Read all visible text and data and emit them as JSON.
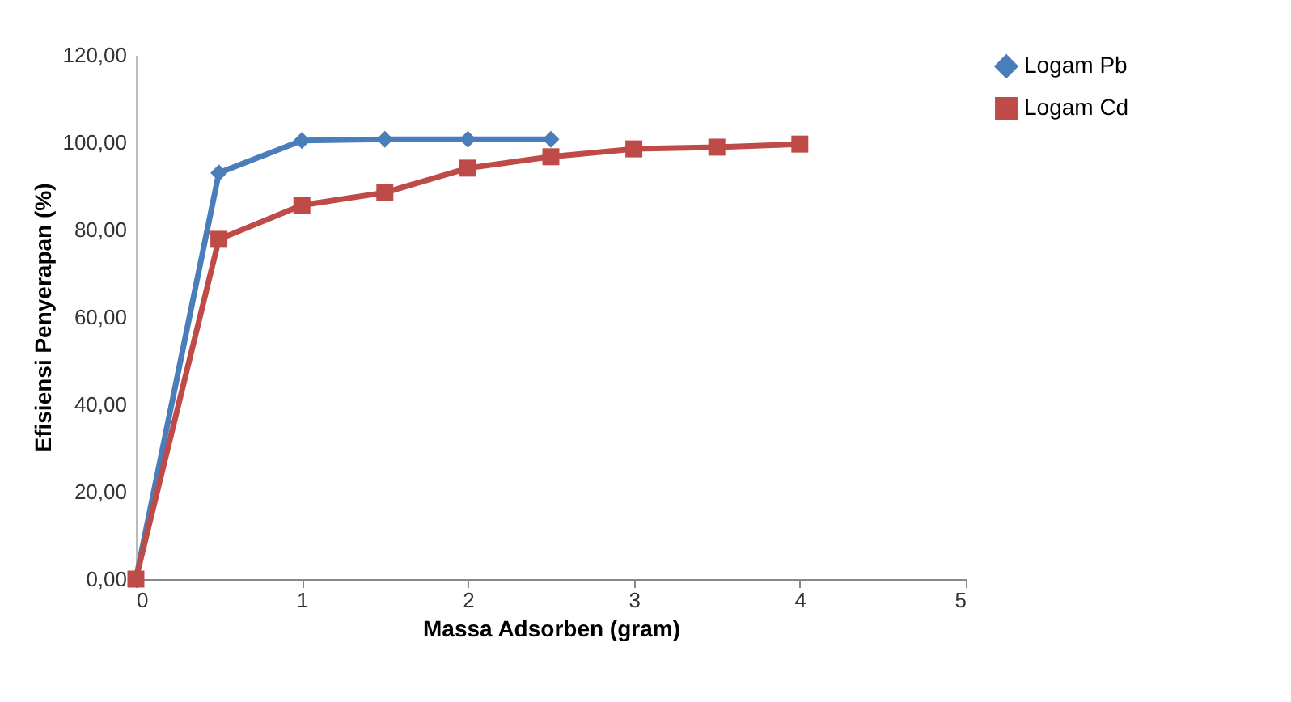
{
  "chart_data": {
    "type": "line",
    "xlabel": "Massa Adsorben (gram)",
    "ylabel": "Efisiensi Penyerapan (%)",
    "xlim": [
      0,
      5
    ],
    "xticks": [
      0,
      1,
      2,
      3,
      4,
      5
    ],
    "ylim": [
      0,
      120
    ],
    "yticks": [
      {
        "value": 0,
        "label": "0,00"
      },
      {
        "value": 20,
        "label": "20,00"
      },
      {
        "value": 40,
        "label": "40,00"
      },
      {
        "value": 60,
        "label": "60,00"
      },
      {
        "value": 80,
        "label": "80,00"
      },
      {
        "value": 100,
        "label": "100,00"
      },
      {
        "value": 120,
        "label": "120,00"
      }
    ],
    "grid": false,
    "legend": "right",
    "series": [
      {
        "name": "Logam Pb",
        "color": "#4a7ebb",
        "marker": "diamond",
        "x": [
          0,
          0.5,
          1,
          1.5,
          2,
          2.5
        ],
        "values": [
          0,
          93,
          100.4,
          100.7,
          100.7,
          100.7
        ]
      },
      {
        "name": "Logam Cd",
        "color": "#be4b48",
        "marker": "square",
        "x": [
          0,
          0.5,
          1,
          1.5,
          2,
          2.5,
          3,
          3.5,
          4
        ],
        "values": [
          0,
          77.8,
          85.6,
          88.5,
          94.1,
          96.7,
          98.5,
          98.9,
          99.6
        ]
      }
    ]
  }
}
